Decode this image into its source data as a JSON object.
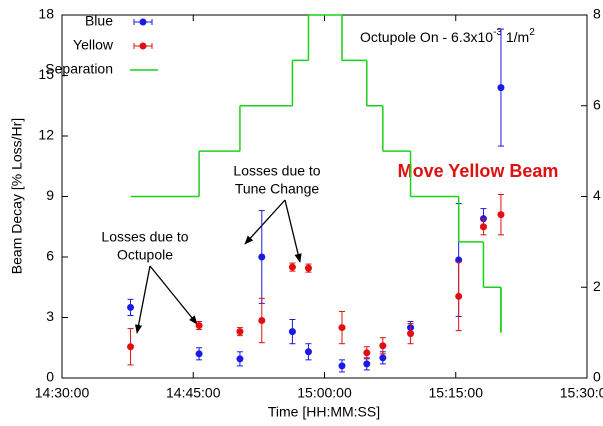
{
  "chart_data": {
    "type": "errorbar",
    "xlabel": "Time [HH:MM:SS]",
    "ylabel": "Beam Decay [% Loss/Hr]",
    "xlim": [
      "14:30:00",
      "15:30:00"
    ],
    "xticks": [
      "14:30:00",
      "14:45:00",
      "15:00:00",
      "15:15:00",
      "15:30:00"
    ],
    "ylim": [
      0,
      18
    ],
    "yticks": [
      0,
      3,
      6,
      9,
      12,
      15,
      18
    ],
    "y2lim": [
      0,
      8
    ],
    "y2ticks": [
      0,
      2,
      4,
      6,
      8
    ],
    "series": [
      {
        "name": "Blue",
        "color": "#1a1ae6",
        "x": [
          "14:37:50",
          "14:45:40",
          "14:50:20",
          "14:52:50",
          "14:56:20",
          "14:58:10",
          "15:02:00",
          "15:04:50",
          "15:06:40",
          "15:09:50",
          "15:15:20",
          "15:18:10",
          "15:20:10"
        ],
        "values": [
          3.5,
          1.2,
          0.95,
          6.0,
          2.3,
          1.3,
          0.6,
          0.7,
          1.0,
          2.5,
          5.85,
          7.9,
          14.4
        ],
        "errors": [
          0.4,
          0.3,
          0.35,
          2.3,
          0.6,
          0.4,
          0.3,
          0.3,
          0.3,
          0.3,
          2.8,
          0.5,
          2.9
        ]
      },
      {
        "name": "Yellow",
        "color": "#e01010",
        "x": [
          "14:37:50",
          "14:45:40",
          "14:50:20",
          "14:52:50",
          "14:56:20",
          "14:58:10",
          "15:02:00",
          "15:04:50",
          "15:06:40",
          "15:09:50",
          "15:15:20",
          "15:18:10",
          "15:20:10"
        ],
        "values": [
          1.55,
          2.6,
          2.3,
          2.85,
          5.5,
          5.45,
          2.5,
          1.25,
          1.6,
          2.2,
          4.05,
          7.5,
          8.1
        ],
        "errors": [
          0.9,
          0.2,
          0.2,
          1.1,
          0.2,
          0.2,
          0.8,
          0.3,
          0.4,
          0.5,
          1.7,
          0.4,
          1.0
        ]
      },
      {
        "name": "Separation",
        "color": "#19d219",
        "axis": "y2",
        "step": "post",
        "x": [
          "14:37:50",
          "14:45:40",
          "14:50:20",
          "14:56:20",
          "14:58:10",
          "15:02:00",
          "15:04:50",
          "15:06:40",
          "15:09:50",
          "15:15:20",
          "15:18:10",
          "15:20:10"
        ],
        "values": [
          4,
          5,
          6,
          7,
          8,
          7,
          6,
          5,
          4,
          3,
          2,
          1
        ]
      }
    ],
    "annotations": {
      "octupole_on": {
        "text": "Octupole On - 6.3x10",
        "exp1": "-3",
        "unit": " 1/m",
        "exp2": "2"
      },
      "move": "Move Yellow Beam",
      "tune": [
        "Losses due to",
        "Tune Change"
      ],
      "octupole": [
        "Losses due to",
        "Octupole"
      ]
    }
  }
}
